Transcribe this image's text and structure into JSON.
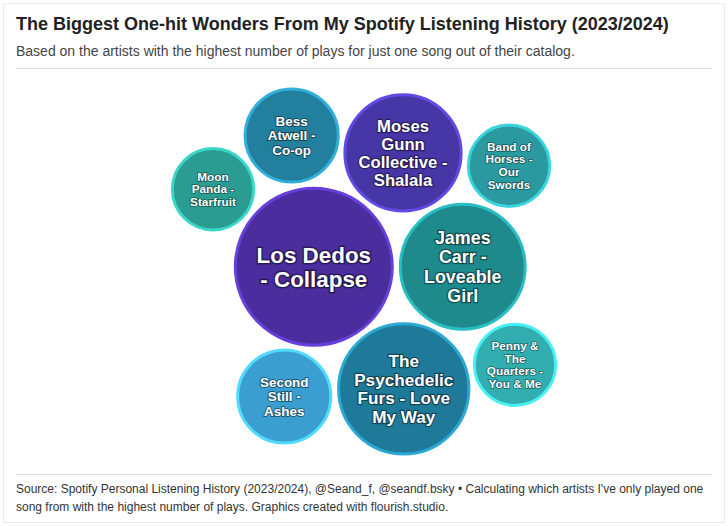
{
  "chart_data": {
    "type": "bubble",
    "title": "The Biggest One-hit Wonders From My Spotify Listening History (2023/2024)",
    "subtitle": "Based on the artists with the highest number of plays for just one song out of their catalog.",
    "source": "Source: Spotify Personal Listening History (2023/2024), @Seand_f, @seandf.bsky • Calculating which artists I've only played one song from with the highest number of plays. Graphics created with flourish.studio.",
    "categories": [
      "Los Dedos - Collapse",
      "James Carr - Loveable Girl",
      "The Psychedelic Furs - Love My Way",
      "Moses Gunn Collective - Shalala",
      "Bess Atwell - Co-op",
      "Second Still - Ashes",
      "Band of Horses - Our Swords",
      "Penny & The Quarters - You & Me",
      "Moon Panda - Starfruit"
    ],
    "values": [
      36,
      23,
      25,
      20,
      13,
      13,
      10,
      10,
      10
    ],
    "colors": [
      "#4b2e9e",
      "#1e8a8c",
      "#1f7a9a",
      "#4736a6",
      "#237f9e",
      "#3a9fd0",
      "#2a9aa0",
      "#33aeb0",
      "#2a9c92"
    ]
  }
}
